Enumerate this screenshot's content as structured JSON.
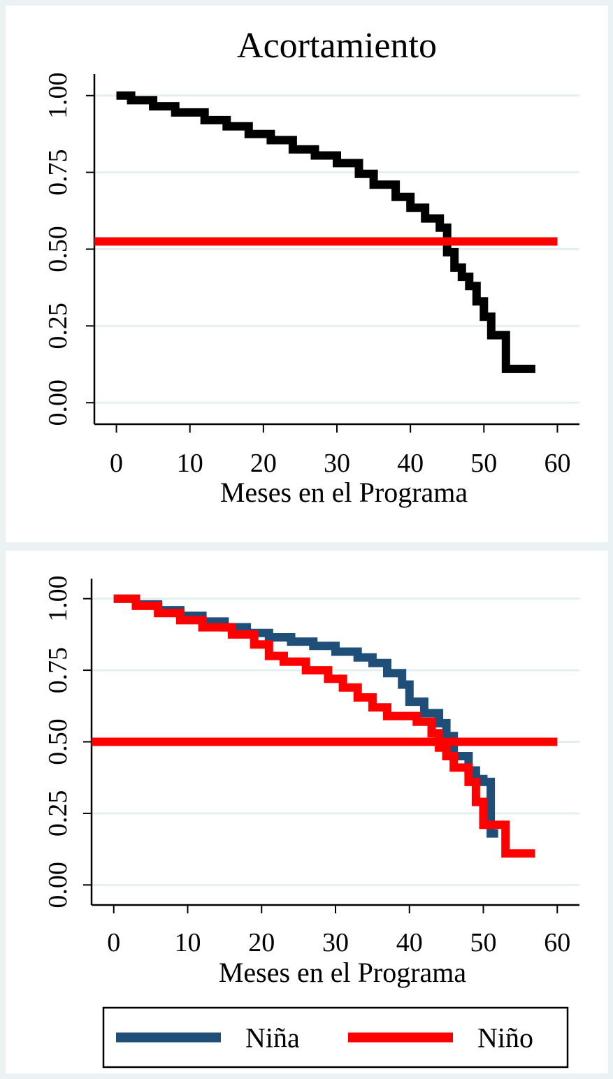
{
  "chart_data": [
    {
      "type": "line",
      "title": "Acortamiento",
      "xlabel": "Meses en el Programa",
      "ylabel": "",
      "xlim": [
        -3,
        63
      ],
      "ylim": [
        -0.07,
        1.07
      ],
      "xticks": [
        0,
        10,
        20,
        30,
        40,
        50,
        60
      ],
      "xtick_labels": [
        "0",
        "10",
        "20",
        "30",
        "40",
        "50",
        "60"
      ],
      "yticks": [
        0,
        0.25,
        0.5,
        0.75,
        1
      ],
      "ytick_labels": [
        "0.00",
        "0.25",
        "0.50",
        "0.75",
        "1.00"
      ],
      "grid": true,
      "series": [
        {
          "step": true,
          "color": "#000000",
          "x": [
            0,
            2,
            5,
            8,
            12,
            15,
            18,
            21,
            24,
            27,
            30,
            33,
            35,
            38,
            40,
            42,
            44,
            45,
            46,
            47,
            48,
            49,
            50,
            51,
            53,
            57
          ],
          "y": [
            1.0,
            0.985,
            0.965,
            0.945,
            0.92,
            0.9,
            0.875,
            0.855,
            0.825,
            0.805,
            0.78,
            0.745,
            0.71,
            0.67,
            0.635,
            0.6,
            0.57,
            0.49,
            0.44,
            0.41,
            0.38,
            0.33,
            0.28,
            0.22,
            0.11,
            0.11
          ]
        },
        {
          "color": "#ff0000",
          "x": [
            -3,
            60
          ],
          "y": [
            0.525,
            0.525
          ]
        }
      ]
    },
    {
      "type": "line",
      "title": "",
      "xlabel": "Meses en el Programa",
      "ylabel": "",
      "xlim": [
        -3,
        63
      ],
      "ylim": [
        -0.07,
        1.07
      ],
      "xticks": [
        0,
        10,
        20,
        30,
        40,
        50,
        60
      ],
      "xtick_labels": [
        "0",
        "10",
        "20",
        "30",
        "40",
        "50",
        "60"
      ],
      "yticks": [
        0,
        0.25,
        0.5,
        0.75,
        1
      ],
      "ytick_labels": [
        "0.00",
        "0.25",
        "0.50",
        "0.75",
        "1.00"
      ],
      "grid": true,
      "legend": {
        "position": "bottom",
        "entries": [
          "Niña",
          "Niño"
        ]
      },
      "series": [
        {
          "name": "Niña",
          "step": true,
          "color": "#1f4e79",
          "x": [
            0,
            3,
            6,
            9,
            12,
            15,
            18,
            21,
            24,
            27,
            30,
            33,
            35,
            37,
            39,
            40,
            42,
            44,
            45,
            46,
            48,
            49,
            50,
            51,
            52
          ],
          "y": [
            1.0,
            0.98,
            0.96,
            0.94,
            0.92,
            0.9,
            0.88,
            0.865,
            0.85,
            0.835,
            0.815,
            0.795,
            0.775,
            0.74,
            0.7,
            0.64,
            0.6,
            0.565,
            0.52,
            0.45,
            0.4,
            0.37,
            0.36,
            0.18,
            0.18
          ]
        },
        {
          "name": "Niño",
          "step": true,
          "color": "#ff0000",
          "x": [
            0,
            3,
            6,
            9,
            12,
            16,
            19,
            21,
            23,
            26,
            29,
            31,
            33,
            35,
            37,
            41,
            43,
            44,
            45,
            46,
            48,
            49,
            50,
            53,
            57
          ],
          "y": [
            1.0,
            0.975,
            0.95,
            0.925,
            0.9,
            0.875,
            0.84,
            0.8,
            0.78,
            0.75,
            0.72,
            0.69,
            0.655,
            0.62,
            0.59,
            0.57,
            0.53,
            0.48,
            0.45,
            0.41,
            0.36,
            0.29,
            0.21,
            0.11,
            0.11
          ]
        },
        {
          "color": "#ff0000",
          "x": [
            -3,
            60
          ],
          "y": [
            0.5,
            0.5
          ]
        }
      ]
    }
  ]
}
